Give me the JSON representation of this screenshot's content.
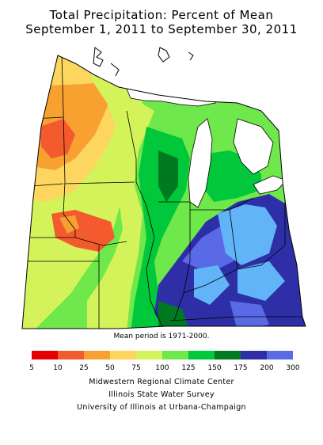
{
  "title": {
    "line1": "Total Precipitation: Percent of Mean",
    "line2": "September 1, 2011 to September 30, 2011"
  },
  "note": "Mean period is 1971-2000.",
  "legend": {
    "labels": [
      "5",
      "10",
      "25",
      "50",
      "75",
      "100",
      "125",
      "150",
      "175",
      "200",
      "300"
    ],
    "colors": [
      "#e60000",
      "#f35a2d",
      "#f8a030",
      "#fcd65e",
      "#d4f25a",
      "#6ee84a",
      "#00c83a",
      "#007a20",
      "#2e2ea6",
      "#5a6ae6",
      "#62b4f8"
    ]
  },
  "palette": {
    "red": "#e60000",
    "orange_red": "#f35a2d",
    "orange": "#f8a030",
    "light_orange": "#fcd65e",
    "yellow_green": "#d4f25a",
    "light_green": "#6ee84a",
    "green": "#00c83a",
    "dark_green": "#007a20",
    "navy": "#2e2ea6",
    "blue": "#5a6ae6",
    "light_blue": "#62b4f8",
    "lake": "#ffffff"
  },
  "credits": {
    "line1": "Midwestern Regional Climate Center",
    "line2": "Illinois State Water Survey",
    "line3": "University of Illinois at Urbana-Champaign"
  }
}
